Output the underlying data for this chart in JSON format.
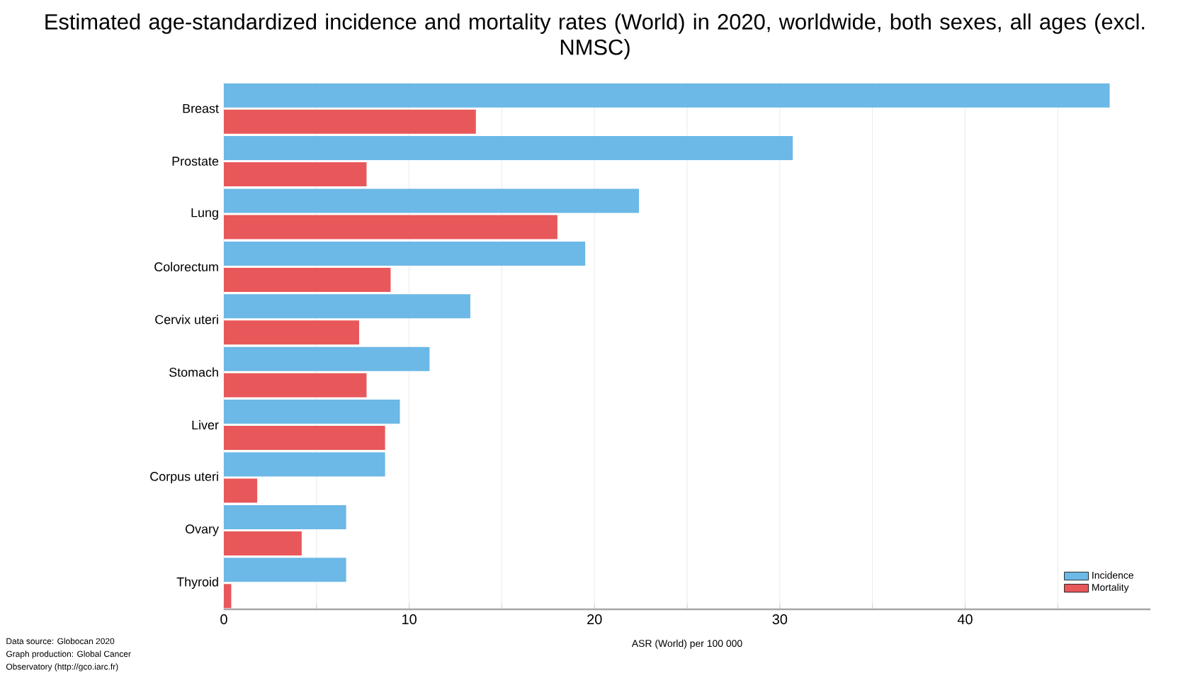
{
  "chart_data": {
    "type": "bar",
    "orientation": "horizontal",
    "title": "Estimated age-standardized incidence and mortality rates (World) in 2020, worldwide, both sexes, all ages (excl. NMSC)",
    "xlabel": "ASR (World) per 100 000",
    "categories": [
      "Breast",
      "Prostate",
      "Lung",
      "Colorectum",
      "Cervix uteri",
      "Stomach",
      "Liver",
      "Corpus uteri",
      "Ovary",
      "Thyroid"
    ],
    "series": [
      {
        "name": "Incidence",
        "color": "#6cb8e6",
        "values": [
          47.8,
          30.7,
          22.4,
          19.5,
          13.3,
          11.1,
          9.5,
          8.7,
          6.6,
          6.6
        ]
      },
      {
        "name": "Mortality",
        "color": "#e8585a",
        "values": [
          13.6,
          7.7,
          18.0,
          9.0,
          7.3,
          7.7,
          8.7,
          1.8,
          4.2,
          0.4
        ]
      }
    ],
    "xlim": [
      0,
      50
    ],
    "xticks": [
      0,
      {
        "value": 5,
        "label": null
      },
      10,
      {
        "value": 15,
        "label": null
      },
      20,
      {
        "value": 25,
        "label": null
      },
      30,
      {
        "value": 35,
        "label": null
      },
      40,
      {
        "value": 45,
        "label": null
      }
    ],
    "grid": "x",
    "legend": "bottom right",
    "annotations": [
      "Data source: Globocan 2020",
      "Graph production: Global Cancer",
      "Observatory (http://gco.iarc.fr)"
    ]
  }
}
